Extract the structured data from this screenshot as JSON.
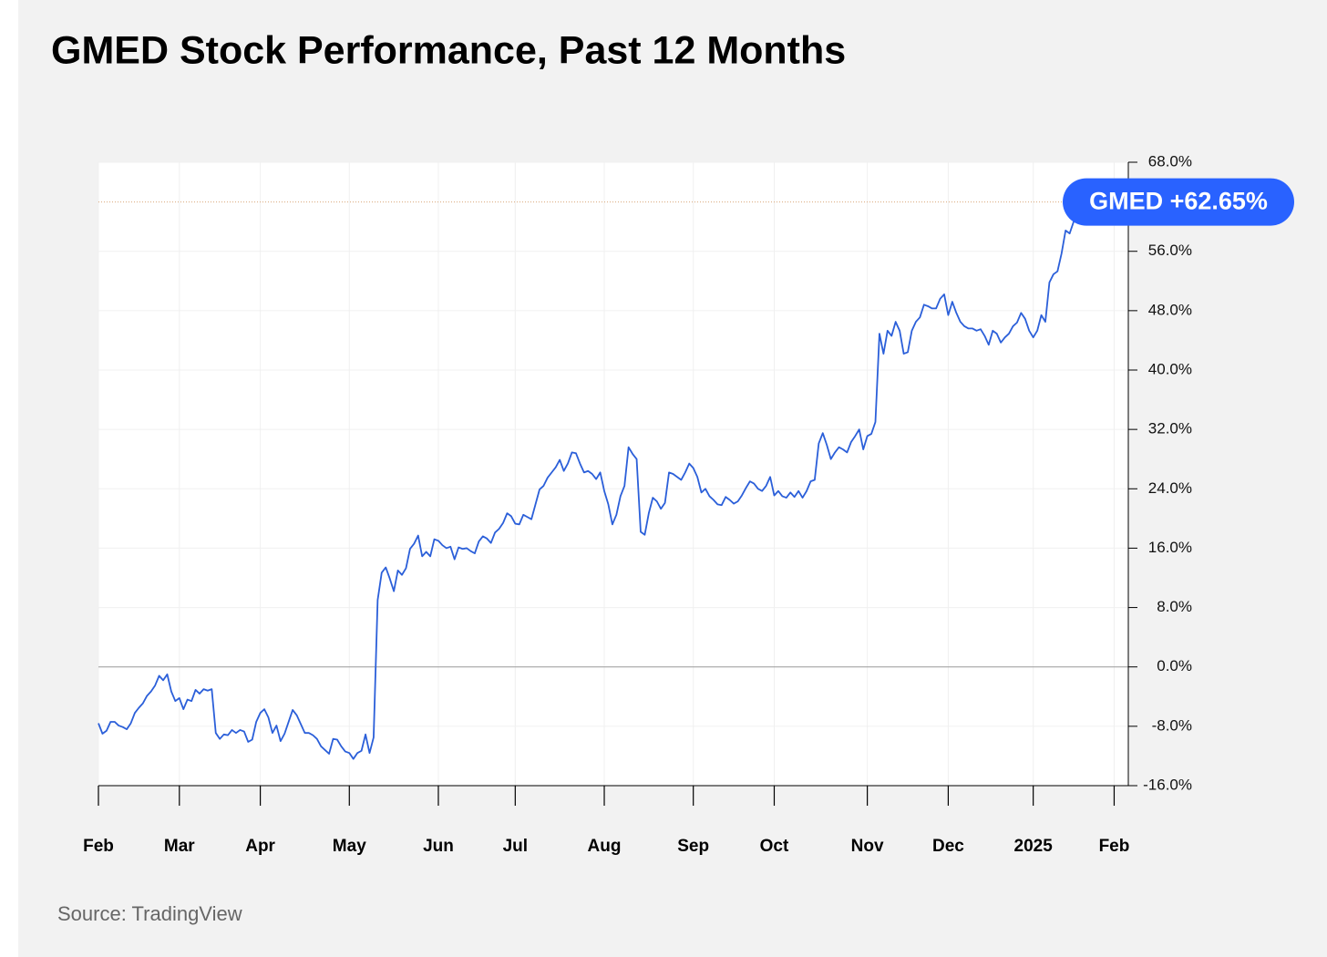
{
  "chart_data": {
    "type": "line",
    "title": "GMED Stock Performance, Past 12 Months",
    "source": "Source: TradingView",
    "end_label": "GMED +62.65%",
    "series": [
      {
        "name": "GMED",
        "color": "#2b5fd9",
        "values": [
          -7.6,
          -9.0,
          -8.6,
          -7.4,
          -7.4,
          -7.9,
          -8.1,
          -8.4,
          -7.6,
          -6.2,
          -5.5,
          -4.9,
          -3.9,
          -3.3,
          -2.5,
          -1.2,
          -1.8,
          -1.0,
          -3.3,
          -4.6,
          -4.2,
          -5.7,
          -4.4,
          -4.6,
          -3.1,
          -3.6,
          -3.0,
          -3.2,
          -3.0,
          -8.9,
          -9.7,
          -9.1,
          -9.2,
          -8.5,
          -8.9,
          -8.5,
          -8.7,
          -10.1,
          -9.8,
          -7.4,
          -6.2,
          -5.7,
          -6.8,
          -8.9,
          -7.9,
          -10.0,
          -9.0,
          -7.4,
          -5.8,
          -6.5,
          -7.7,
          -8.9,
          -8.9,
          -9.2,
          -9.7,
          -10.7,
          -11.2,
          -11.7,
          -9.7,
          -9.8,
          -10.7,
          -11.4,
          -11.6,
          -12.4,
          -11.6,
          -11.3,
          -9.1,
          -11.6,
          -9.5,
          9.0,
          12.7,
          13.4,
          11.9,
          10.2,
          13.0,
          12.4,
          13.3,
          15.9,
          16.6,
          17.7,
          14.9,
          15.5,
          14.9,
          17.2,
          17.0,
          16.4,
          16.0,
          16.2,
          14.5,
          16.1,
          15.9,
          16.0,
          15.6,
          15.3,
          16.9,
          17.6,
          17.3,
          16.7,
          18.1,
          18.6,
          19.4,
          20.7,
          20.3,
          19.3,
          19.2,
          20.5,
          20.2,
          19.9,
          21.9,
          23.9,
          24.4,
          25.5,
          26.2,
          26.9,
          27.9,
          26.4,
          27.4,
          28.9,
          28.8,
          27.4,
          26.2,
          26.4,
          26.0,
          25.3,
          26.2,
          23.7,
          21.9,
          19.2,
          20.5,
          23.0,
          24.4,
          29.6,
          28.7,
          28.0,
          18.2,
          17.8,
          20.7,
          22.8,
          22.3,
          21.3,
          22.1,
          26.2,
          26.0,
          25.6,
          25.2,
          26.2,
          27.4,
          26.8,
          25.6,
          23.5,
          24.0,
          23.0,
          22.5,
          21.9,
          21.8,
          22.9,
          22.5,
          22.0,
          22.3,
          23.1,
          24.1,
          25.0,
          24.7,
          24.0,
          23.7,
          24.4,
          25.6,
          23.1,
          23.7,
          23.0,
          22.8,
          23.5,
          22.9,
          23.7,
          22.8,
          23.7,
          25.0,
          25.2,
          30.1,
          31.5,
          29.9,
          28.0,
          28.9,
          29.6,
          29.3,
          28.9,
          30.3,
          31.1,
          32.0,
          29.3,
          31.1,
          31.4,
          33.0,
          44.9,
          42.2,
          45.3,
          44.6,
          46.5,
          45.3,
          42.2,
          42.4,
          45.3,
          46.5,
          47.1,
          48.8,
          48.6,
          48.3,
          48.3,
          49.6,
          50.2,
          47.4,
          49.2,
          47.7,
          46.5,
          45.9,
          45.6,
          45.6,
          45.3,
          45.5,
          44.6,
          43.4,
          45.3,
          44.9,
          43.7,
          44.4,
          44.9,
          45.9,
          46.4,
          47.7,
          46.9,
          45.3,
          44.4,
          45.3,
          47.4,
          46.5,
          51.8,
          52.9,
          53.3,
          55.7,
          58.8,
          58.4,
          60.0,
          62.65
        ]
      }
    ],
    "xlim": [
      0,
      254.5
    ],
    "xticks": [
      {
        "value": 0,
        "label": "Feb"
      },
      {
        "value": 20,
        "label": "Mar"
      },
      {
        "value": 40,
        "label": "Apr"
      },
      {
        "value": 62,
        "label": "May"
      },
      {
        "value": 84,
        "label": "Jun"
      },
      {
        "value": 103,
        "label": "Jul"
      },
      {
        "value": 125,
        "label": "Aug"
      },
      {
        "value": 147,
        "label": "Sep"
      },
      {
        "value": 167,
        "label": "Oct"
      },
      {
        "value": 190,
        "label": "Nov"
      },
      {
        "value": 210,
        "label": "Dec"
      },
      {
        "value": 231,
        "label": "2025"
      },
      {
        "value": 251,
        "label": "Feb"
      }
    ],
    "ylim": [
      -16,
      68
    ],
    "yticks": [
      {
        "value": -16,
        "label": "-16.0%"
      },
      {
        "value": -8,
        "label": "-8.0%"
      },
      {
        "value": 0,
        "label": "0.0%"
      },
      {
        "value": 8,
        "label": "8.0%"
      },
      {
        "value": 16,
        "label": "16.0%"
      },
      {
        "value": 24,
        "label": "24.0%"
      },
      {
        "value": 32,
        "label": "32.0%"
      },
      {
        "value": 40,
        "label": "40.0%"
      },
      {
        "value": 48,
        "label": "48.0%"
      },
      {
        "value": 56,
        "label": "56.0%"
      },
      {
        "value": 68,
        "label": "68.0%"
      }
    ],
    "grid": true,
    "label_color": "#2962ff"
  }
}
